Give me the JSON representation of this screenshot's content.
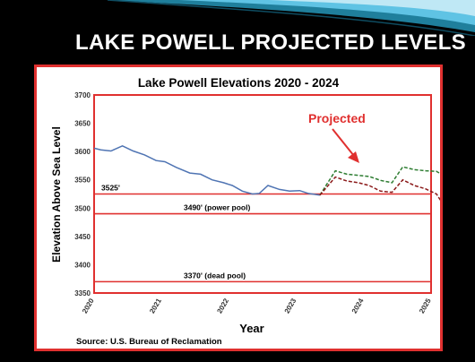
{
  "slide": {
    "title": "LAKE POWELL PROJECTED LEVELS",
    "background_color": "#000000",
    "frame_color": "#e0302f"
  },
  "chart_data": {
    "type": "line",
    "title": "Lake Powell Elevations 2020 - 2024",
    "xlabel": "Year",
    "ylabel": "Elevation Above Sea Level",
    "ylim": [
      3350,
      3700
    ],
    "yticks": [
      3350,
      3400,
      3450,
      3500,
      3550,
      3600,
      3650,
      3700
    ],
    "xlim": [
      2020,
      2025
    ],
    "xticks": [
      2020,
      2021,
      2022,
      2023,
      2024,
      2025
    ],
    "grid": false,
    "source": "Source: U.S. Bureau of Reclamation",
    "annotation": "Projected",
    "reference_lines": [
      {
        "label": "3525'",
        "value": 3525
      },
      {
        "label": "3490' (power pool)",
        "value": 3490
      },
      {
        "label": "3370' (dead pool)",
        "value": 3370
      }
    ],
    "series": [
      {
        "color": "#4f74b3",
        "dash": "solid",
        "points": [
          [
            2020.0,
            3606
          ],
          [
            2020.1,
            3603
          ],
          [
            2020.25,
            3601
          ],
          [
            2020.42,
            3610
          ],
          [
            2020.58,
            3601
          ],
          [
            2020.75,
            3594
          ],
          [
            2020.92,
            3584
          ],
          [
            2021.05,
            3582
          ],
          [
            2021.22,
            3572
          ],
          [
            2021.42,
            3562
          ],
          [
            2021.58,
            3560
          ],
          [
            2021.75,
            3550
          ],
          [
            2021.92,
            3545
          ],
          [
            2022.05,
            3540
          ],
          [
            2022.2,
            3530
          ],
          [
            2022.35,
            3525
          ],
          [
            2022.45,
            3526
          ],
          [
            2022.58,
            3540
          ],
          [
            2022.75,
            3533
          ],
          [
            2022.9,
            3530
          ],
          [
            2023.05,
            3531
          ],
          [
            2023.18,
            3526
          ],
          [
            2023.35,
            3523
          ]
        ]
      },
      {
        "color": "#2e7d32",
        "dash": "dashed",
        "points": [
          [
            2023.35,
            3523
          ],
          [
            2023.58,
            3566
          ],
          [
            2023.75,
            3560
          ],
          [
            2023.92,
            3558
          ],
          [
            2024.08,
            3556
          ],
          [
            2024.25,
            3549
          ],
          [
            2024.42,
            3545
          ],
          [
            2024.58,
            3573
          ],
          [
            2024.75,
            3568
          ],
          [
            2024.92,
            3566
          ],
          [
            2025.08,
            3565
          ],
          [
            2025.15,
            3560
          ]
        ]
      },
      {
        "color": "#8b1a1a",
        "dash": "dashed",
        "points": [
          [
            2023.35,
            3523
          ],
          [
            2023.58,
            3555
          ],
          [
            2023.75,
            3548
          ],
          [
            2023.92,
            3545
          ],
          [
            2024.08,
            3540
          ],
          [
            2024.25,
            3530
          ],
          [
            2024.42,
            3528
          ],
          [
            2024.58,
            3550
          ],
          [
            2024.75,
            3540
          ],
          [
            2024.92,
            3534
          ],
          [
            2025.08,
            3525
          ],
          [
            2025.15,
            3512
          ]
        ]
      }
    ]
  }
}
